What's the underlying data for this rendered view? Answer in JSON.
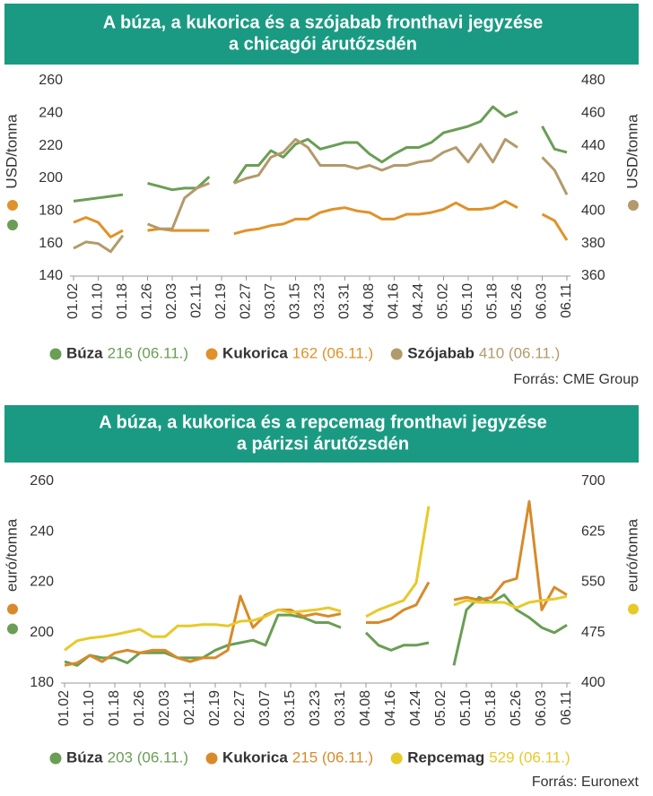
{
  "chart_data": [
    {
      "type": "line",
      "title": [
        "A búza, a kukorica és a szójabab fronthavi jegyzése",
        "a chicagói árutőzsdén"
      ],
      "ylabel": "USD/tonna",
      "y2label": "USD/tonna",
      "categories": [
        "01.02",
        null,
        "01.10",
        null,
        "01.18",
        null,
        "01.26",
        null,
        "02.03",
        null,
        "02.11",
        null,
        "02.19",
        null,
        "02.27",
        null,
        "03.07",
        null,
        "03.15",
        null,
        "03.23",
        null,
        "03.31",
        null,
        "04.08",
        null,
        "04.16",
        null,
        "04.24",
        null,
        "05.02",
        null,
        "05.10",
        null,
        "05.18",
        null,
        "05.26",
        null,
        "06.03",
        null,
        "06.11"
      ],
      "ylim": [
        140,
        260
      ],
      "yticks": [
        140,
        160,
        180,
        200,
        220,
        240,
        260
      ],
      "y2lim": [
        360,
        480
      ],
      "y2ticks": [
        360,
        380,
        400,
        420,
        440,
        460,
        480
      ],
      "series": [
        {
          "name": "Búza",
          "color": "#6a9e55",
          "last_value_label": "216 (06.11.)",
          "values": [
            186,
            187,
            188,
            189,
            190,
            null,
            197,
            195,
            193,
            194,
            194,
            201,
            null,
            197,
            208,
            208,
            217,
            213,
            221,
            224,
            218,
            220,
            222,
            222,
            215,
            210,
            215,
            219,
            219,
            222,
            228,
            230,
            232,
            235,
            244,
            238,
            241,
            null,
            232,
            218,
            216
          ]
        },
        {
          "name": "Kukorica",
          "color": "#e0922a",
          "last_value_label": "162 (06.11.)",
          "values": [
            173,
            176,
            173,
            164,
            168,
            null,
            168,
            169,
            168,
            168,
            168,
            168,
            null,
            166,
            168,
            169,
            171,
            172,
            175,
            175,
            179,
            181,
            182,
            180,
            179,
            175,
            175,
            178,
            178,
            179,
            181,
            185,
            181,
            181,
            182,
            186,
            182,
            null,
            178,
            174,
            162
          ]
        },
        {
          "name": "Szójabab",
          "color": "#b39a6b",
          "axis": "y2",
          "last_value_label": "410 (06.11.)",
          "values": [
            377,
            381,
            380,
            375,
            385,
            null,
            392,
            389,
            389,
            408,
            414,
            417,
            null,
            417,
            420,
            422,
            433,
            436,
            444,
            439,
            428,
            428,
            428,
            426,
            428,
            425,
            428,
            428,
            430,
            431,
            436,
            439,
            430,
            441,
            430,
            444,
            439,
            null,
            433,
            425,
            410
          ]
        }
      ],
      "source": "Forrás: CME Group"
    },
    {
      "type": "line",
      "title": [
        "A búza, a kukorica és a repcemag fronthavi jegyzése",
        "a párizsi árutőzsdén"
      ],
      "ylabel": "euró/tonna",
      "y2label": "euró/tonna",
      "categories": [
        "01.02",
        null,
        "01.10",
        null,
        "01.18",
        null,
        "01.26",
        null,
        "02.03",
        null,
        "02.11",
        null,
        "02.19",
        null,
        "02.27",
        null,
        "03.07",
        null,
        "03.15",
        null,
        "03.23",
        null,
        "03.31",
        null,
        "04.08",
        null,
        "04.16",
        null,
        "04.24",
        null,
        "05.02",
        null,
        "05.10",
        null,
        "05.18",
        null,
        "05.26",
        null,
        "06.03",
        null,
        "06.11"
      ],
      "ylim": [
        180,
        260
      ],
      "yticks": [
        180,
        200,
        220,
        240,
        260
      ],
      "y2lim": [
        400,
        700
      ],
      "y2ticks": [
        400,
        475,
        550,
        625,
        700
      ],
      "series": [
        {
          "name": "Búza",
          "color": "#6a9e55",
          "last_value_label": "203 (06.11.)",
          "values": [
            188.5,
            187,
            191,
            190,
            190,
            188,
            192,
            192,
            192,
            190,
            190,
            190,
            193,
            195,
            196,
            197,
            195,
            207,
            207,
            206,
            204,
            204,
            202,
            null,
            200,
            195,
            193,
            195,
            195,
            196,
            null,
            187,
            209,
            214,
            212,
            215,
            209,
            206,
            202,
            200,
            203
          ]
        },
        {
          "name": "Kukorica",
          "color": "#d88a2a",
          "last_value_label": "215 (06.11.)",
          "values": [
            187,
            188,
            191,
            188.5,
            192,
            193,
            192,
            193,
            193,
            190,
            188.5,
            190,
            190,
            193,
            214.5,
            202,
            207,
            209,
            209,
            206.5,
            207.5,
            206.5,
            207.5,
            null,
            204,
            204,
            205.5,
            209,
            211,
            220,
            null,
            213,
            214,
            213,
            214,
            220,
            221.5,
            252,
            209,
            218,
            215
          ]
        },
        {
          "name": "Repcemag",
          "color": "#e8c92a",
          "axis": "y2",
          "last_value_label": "529 (06.11.)",
          "values": [
            449,
            463,
            467,
            469,
            472,
            476,
            480,
            469,
            469,
            485,
            485,
            487,
            487,
            485,
            492,
            493,
            499,
            509,
            505,
            507,
            509,
            512,
            507,
            null,
            499,
            509,
            516,
            523,
            549,
            663,
            null,
            516,
            523,
            520,
            520,
            520,
            512,
            520,
            523,
            525,
            529
          ]
        }
      ],
      "source": "Forrás: Euronext"
    }
  ]
}
